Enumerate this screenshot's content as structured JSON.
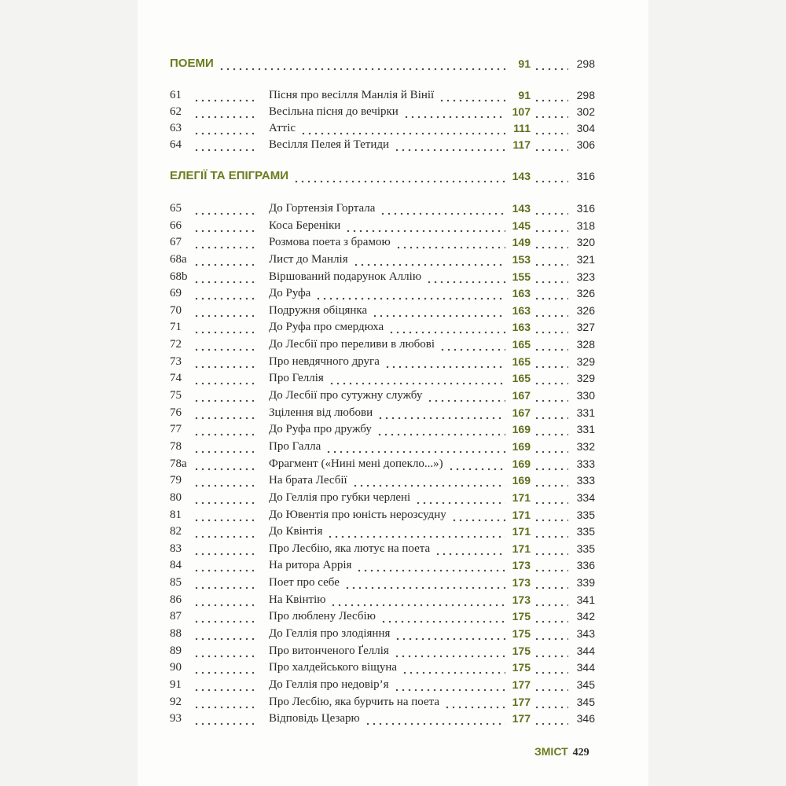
{
  "sections": [
    {
      "title": "ПОЕМИ",
      "page": 91,
      "page2": 298,
      "entries": [
        {
          "num": "61",
          "title": "Пісня про весілля Манлія й Вінії",
          "page": 91,
          "page2": 298
        },
        {
          "num": "62",
          "title": "Весільна пісня до вечірки",
          "page": 107,
          "page2": 302
        },
        {
          "num": "63",
          "title": "Аттіс",
          "page": 111,
          "page2": 304
        },
        {
          "num": "64",
          "title": "Весілля Пелея й Тетиди",
          "page": 117,
          "page2": 306
        }
      ]
    },
    {
      "title": "ЕЛЕГІЇ ТА ЕПІГРАМИ",
      "page": 143,
      "page2": 316,
      "entries": [
        {
          "num": "65",
          "title": "До Гортензія Гортала",
          "page": 143,
          "page2": 316
        },
        {
          "num": "66",
          "title": "Коса Береніки",
          "page": 145,
          "page2": 318
        },
        {
          "num": "67",
          "title": "Розмова поета з брамою",
          "page": 149,
          "page2": 320
        },
        {
          "num": "68a",
          "title": "Лист до Манлія",
          "page": 153,
          "page2": 321
        },
        {
          "num": "68b",
          "title": "Віршований подарунок Аллію",
          "page": 155,
          "page2": 323
        },
        {
          "num": "69",
          "title": "До Руфа",
          "page": 163,
          "page2": 326
        },
        {
          "num": "70",
          "title": "Подружня обіцянка",
          "page": 163,
          "page2": 326
        },
        {
          "num": "71",
          "title": "До Руфа про смердюха",
          "page": 163,
          "page2": 327
        },
        {
          "num": "72",
          "title": "До Лесбії про переливи в любові",
          "page": 165,
          "page2": 328
        },
        {
          "num": "73",
          "title": "Про невдячного друга",
          "page": 165,
          "page2": 329
        },
        {
          "num": "74",
          "title": "Про Геллія",
          "page": 165,
          "page2": 329
        },
        {
          "num": "75",
          "title": "До Лесбії про сутужну службу",
          "page": 167,
          "page2": 330
        },
        {
          "num": "76",
          "title": "Зцілення від любови",
          "page": 167,
          "page2": 331
        },
        {
          "num": "77",
          "title": "До Руфа про дружбу",
          "page": 169,
          "page2": 331
        },
        {
          "num": "78",
          "title": "Про Галла",
          "page": 169,
          "page2": 332
        },
        {
          "num": "78a",
          "title": "Фрагмент («Нині мені допекло...»)",
          "page": 169,
          "page2": 333
        },
        {
          "num": "79",
          "title": "На брата Лесбії",
          "page": 169,
          "page2": 333
        },
        {
          "num": "80",
          "title": "До Геллія про губки черлені",
          "page": 171,
          "page2": 334
        },
        {
          "num": "81",
          "title": "До Ювентія про юність нерозсудну",
          "page": 171,
          "page2": 335
        },
        {
          "num": "82",
          "title": "До Квінтія",
          "page": 171,
          "page2": 335
        },
        {
          "num": "83",
          "title": "Про Лесбію, яка лютує на поета",
          "page": 171,
          "page2": 335
        },
        {
          "num": "84",
          "title": "На ритора Аррія",
          "page": 173,
          "page2": 336
        },
        {
          "num": "85",
          "title": "Поет про себе",
          "page": 173,
          "page2": 339
        },
        {
          "num": "86",
          "title": "На Квінтію",
          "page": 173,
          "page2": 341
        },
        {
          "num": "87",
          "title": "Про люблену Лесбію",
          "page": 175,
          "page2": 342
        },
        {
          "num": "88",
          "title": "До Геллія про злодіяння",
          "page": 175,
          "page2": 343
        },
        {
          "num": "89",
          "title": "Про витонченого Ґеллія",
          "page": 175,
          "page2": 344
        },
        {
          "num": "90",
          "title": "Про халдейського віщуна",
          "page": 175,
          "page2": 344
        },
        {
          "num": "91",
          "title": "До Геллія про недовір’я",
          "page": 177,
          "page2": 345
        },
        {
          "num": "92",
          "title": "Про Лесбію, яка бурчить на поета",
          "page": 177,
          "page2": 345
        },
        {
          "num": "93",
          "title": "Відповідь Цезарю",
          "page": 177,
          "page2": 346
        }
      ]
    }
  ],
  "footer": {
    "label": "ЗМІСТ",
    "page": 429
  }
}
